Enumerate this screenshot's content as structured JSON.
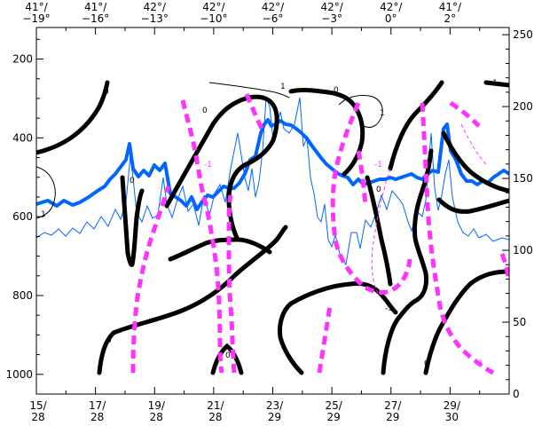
{
  "chart_data": {
    "type": "line",
    "title": "",
    "xlabel": "",
    "ylabel": "",
    "colors": {
      "frame": "#000000",
      "black_contour": "#000000",
      "magenta_contour": "#ff33ff",
      "blue_series": "#0066ff"
    },
    "top_axis_ticks": [
      {
        "lat": "41°",
        "lon": "−19°"
      },
      {
        "lat": "41°",
        "lon": "−16°"
      },
      {
        "lat": "42°",
        "lon": "−13°"
      },
      {
        "lat": "42°",
        "lon": "−10°"
      },
      {
        "lat": "42°",
        "lon": "−6°"
      },
      {
        "lat": "42°",
        "lon": "−3°"
      },
      {
        "lat": "42°",
        "lon": "0°"
      },
      {
        "lat": "41°",
        "lon": "2°"
      }
    ],
    "bottom_axis_ticks": [
      {
        "day": "15",
        "month": "28"
      },
      {
        "day": "17",
        "month": "28"
      },
      {
        "day": "19",
        "month": "28"
      },
      {
        "day": "21",
        "month": "28"
      },
      {
        "day": "23",
        "month": "29"
      },
      {
        "day": "25",
        "month": "29"
      },
      {
        "day": "27",
        "month": "29"
      },
      {
        "day": "29",
        "month": "30"
      }
    ],
    "left_axis": {
      "range": [
        1050,
        120
      ],
      "ticks": [
        200,
        400,
        600,
        800,
        1000
      ]
    },
    "right_axis": {
      "range": [
        0,
        255
      ],
      "ticks": [
        0,
        50,
        100,
        150,
        200,
        250
      ]
    },
    "contour_labels": [
      "0",
      "0",
      "0",
      "0",
      "0",
      "0",
      "0",
      "0",
      "1",
      "1",
      "1",
      "-1",
      "-1",
      "-1",
      "-1",
      "-1"
    ]
  }
}
